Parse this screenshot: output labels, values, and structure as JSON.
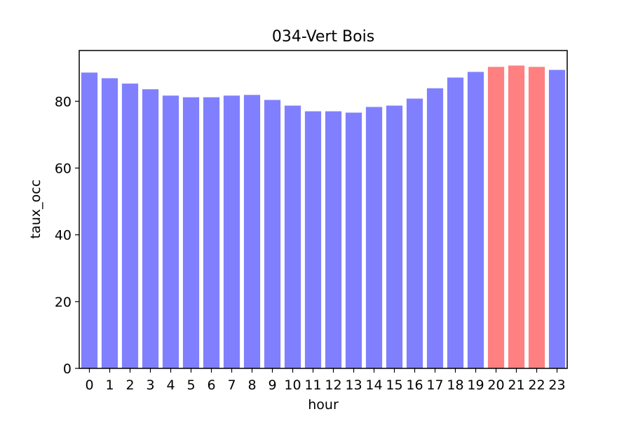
{
  "chart_data": {
    "type": "bar",
    "title": "034-Vert Bois",
    "xlabel": "hour",
    "ylabel": "taux_occ",
    "categories": [
      "0",
      "1",
      "2",
      "3",
      "4",
      "5",
      "6",
      "7",
      "8",
      "9",
      "10",
      "11",
      "12",
      "13",
      "14",
      "15",
      "16",
      "17",
      "18",
      "19",
      "20",
      "21",
      "22",
      "23"
    ],
    "values": [
      88.6,
      86.9,
      85.3,
      83.6,
      81.7,
      81.2,
      81.2,
      81.7,
      81.9,
      80.4,
      78.7,
      77.0,
      77.0,
      76.6,
      78.3,
      78.7,
      80.8,
      83.9,
      87.1,
      88.8,
      90.3,
      90.7,
      90.3,
      89.4
    ],
    "highlight_indices": [
      20,
      21,
      22
    ],
    "colors": {
      "default": "#8080ff",
      "highlight": "#ff8080"
    },
    "ylim": [
      0,
      95.2
    ],
    "yticks": [
      0,
      20,
      40,
      60,
      80
    ],
    "grid": false
  }
}
